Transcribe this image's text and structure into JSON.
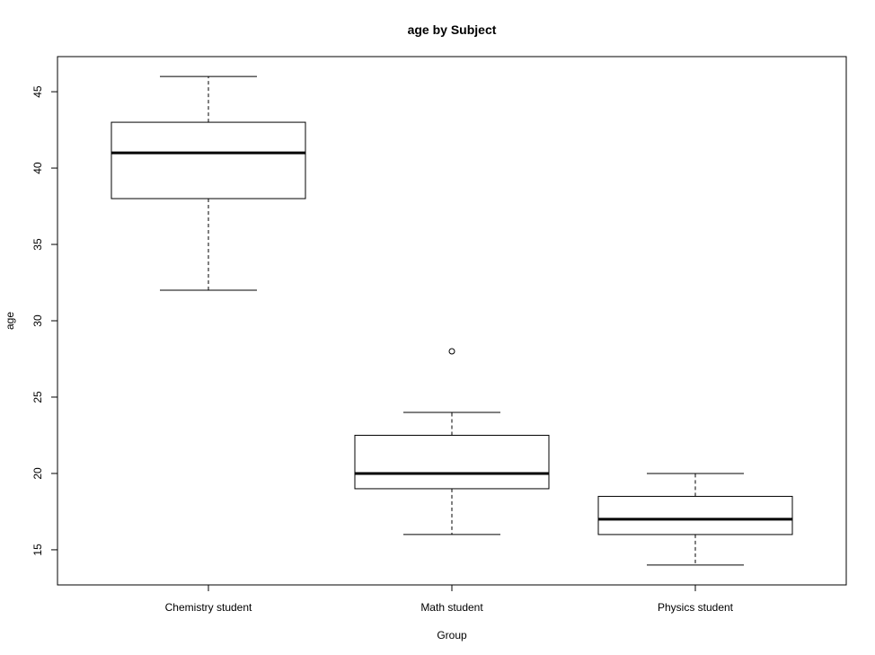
{
  "chart_data": {
    "type": "boxplot",
    "title": "age by Subject",
    "xlabel": "Group",
    "ylabel": "age",
    "ylim": [
      12.7,
      47.3
    ],
    "yticks": [
      15,
      20,
      25,
      30,
      35,
      40,
      45
    ],
    "grid": false,
    "categories": [
      "Chemistry student",
      "Math student",
      "Physics student"
    ],
    "boxes": [
      {
        "category": "Chemistry student",
        "whisker_low": 32,
        "q1": 38,
        "median": 41,
        "q3": 43,
        "whisker_high": 46,
        "outliers": []
      },
      {
        "category": "Math student",
        "whisker_low": 16,
        "q1": 19,
        "median": 20,
        "q3": 22.5,
        "whisker_high": 24,
        "outliers": [
          28
        ]
      },
      {
        "category": "Physics student",
        "whisker_low": 14,
        "q1": 16,
        "median": 17,
        "q3": 18.5,
        "whisker_high": 20,
        "outliers": []
      }
    ]
  }
}
